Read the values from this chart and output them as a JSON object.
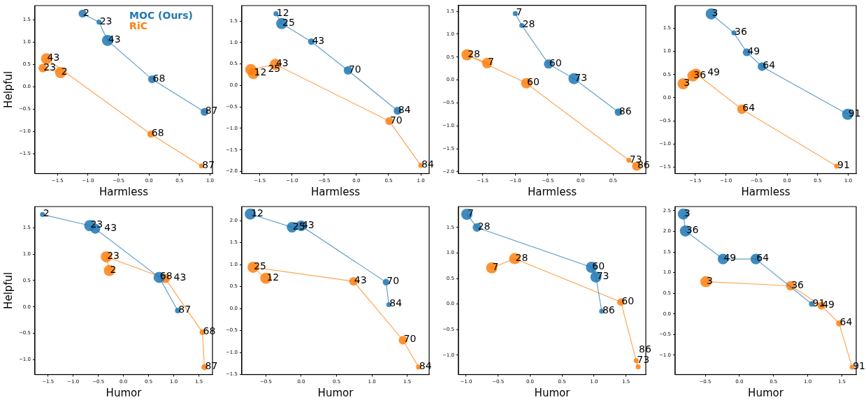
{
  "chart_data": [
    {
      "type": "bubble",
      "xlabel": "Harmless",
      "ylabel": "Helpful",
      "legend": "top right",
      "line_style": "solid",
      "grid": false,
      "xlim": [
        -1.87,
        1.04
      ],
      "ylim": [
        -1.94,
        1.82
      ],
      "xticks": [
        {
          "value": -1.5,
          "label": "−1.5"
        },
        {
          "value": -1,
          "label": "−1.0"
        },
        {
          "value": -0.5,
          "label": "−0.5"
        },
        {
          "value": 0,
          "label": "0.0"
        },
        {
          "value": 0.5,
          "label": "0.5"
        },
        {
          "value": 1,
          "label": "1.0"
        }
      ],
      "yticks": [
        {
          "value": -1.5,
          "label": "−1.5"
        },
        {
          "value": -1,
          "label": "−1.0"
        },
        {
          "value": -0.5,
          "label": "−0.5"
        },
        {
          "value": 0,
          "label": "0.0"
        },
        {
          "value": 0.5,
          "label": "0.5"
        },
        {
          "value": 1,
          "label": "1.0"
        },
        {
          "value": 1.5,
          "label": "1.5"
        }
      ],
      "series": [
        {
          "name": "MOC (Ours)",
          "color": "#1f77b4",
          "x": [
            -1.09,
            -0.82,
            -0.68,
            0.05,
            0.91
          ],
          "values": [
            1.64,
            1.45,
            1.04,
            0.17,
            -0.56
          ],
          "sizes": [
            0.5,
            0.2,
            1,
            0.5,
            0.5
          ]
        },
        {
          "name": "RiC",
          "color": "#ff7f0e",
          "x": [
            -1.45,
            -1.74,
            -1.68,
            0.03,
            0.86
          ],
          "values": [
            0.32,
            0.42,
            0.63,
            -1.06,
            -1.77
          ],
          "sizes": [
            1,
            0.6,
            1,
            0.4,
            0.2
          ]
        }
      ],
      "annotations": [
        {
          "text": "2",
          "x": -1.09,
          "y": 1.64
        },
        {
          "text": "23",
          "x": -0.82,
          "y": 1.45
        },
        {
          "text": "43",
          "x": -0.68,
          "y": 1.04
        },
        {
          "text": "68",
          "x": 0.05,
          "y": 0.17
        },
        {
          "text": "87",
          "x": 0.91,
          "y": -0.56
        },
        {
          "text": "2",
          "x": -1.45,
          "y": 0.32
        },
        {
          "text": "23",
          "x": -1.74,
          "y": 0.42
        },
        {
          "text": "43",
          "x": -1.68,
          "y": 0.63
        },
        {
          "text": "68",
          "x": 0.03,
          "y": -1.06
        },
        {
          "text": "87",
          "x": 0.86,
          "y": -1.77
        }
      ]
    },
    {
      "type": "bubble",
      "xlabel": "Harmless",
      "line_style": "solid",
      "grid": false,
      "xlim": [
        -1.78,
        1.13
      ],
      "ylim": [
        -2.05,
        1.86
      ],
      "xticks": [
        {
          "value": -1.5,
          "label": "−1.5"
        },
        {
          "value": -1,
          "label": "−1.0"
        },
        {
          "value": -0.5,
          "label": "−0.5"
        },
        {
          "value": 0,
          "label": "0.0"
        },
        {
          "value": 0.5,
          "label": "0.5"
        },
        {
          "value": 1,
          "label": "1.0"
        }
      ],
      "yticks": [
        {
          "value": -2,
          "label": "−2.0"
        },
        {
          "value": -1.5,
          "label": "−1.5"
        },
        {
          "value": -1,
          "label": "−1.0"
        },
        {
          "value": -0.5,
          "label": "−0.5"
        },
        {
          "value": 0,
          "label": "0.0"
        },
        {
          "value": 0.5,
          "label": "0.5"
        },
        {
          "value": 1,
          "label": "1.0"
        },
        {
          "value": 1.5,
          "label": "1.5"
        }
      ],
      "series": [
        {
          "color": "#1f77b4",
          "x": [
            -1.25,
            -1.16,
            -0.7,
            -0.13,
            0.64
          ],
          "values": [
            1.67,
            1.44,
            1.02,
            0.35,
            -0.59
          ],
          "sizes": [
            0.2,
            1,
            0.35,
            0.6,
            0.5
          ]
        },
        {
          "color": "#ff7f0e",
          "x": [
            -1.6,
            -1.64,
            -1.26,
            0.51,
            1.0
          ],
          "values": [
            0.28,
            0.37,
            0.49,
            -0.83,
            -1.86
          ],
          "sizes": [
            1,
            1,
            1,
            0.5,
            0.2
          ]
        }
      ],
      "annotations": [
        {
          "text": "12",
          "x": -1.25,
          "y": 1.67
        },
        {
          "text": "25",
          "x": -1.16,
          "y": 1.44
        },
        {
          "text": "43",
          "x": -0.7,
          "y": 1.02
        },
        {
          "text": "70",
          "x": -0.13,
          "y": 0.35
        },
        {
          "text": "84",
          "x": 0.64,
          "y": -0.59
        },
        {
          "text": "12",
          "x": -1.6,
          "y": 0.28
        },
        {
          "text": "25",
          "x": -1.64,
          "y": 0.37
        },
        {
          "text": "43",
          "x": -1.26,
          "y": 0.49
        },
        {
          "text": "70",
          "x": 0.51,
          "y": -0.83
        },
        {
          "text": "84",
          "x": 1.0,
          "y": -1.86
        }
      ]
    },
    {
      "type": "bubble",
      "xlabel": "Harmless",
      "line_style": "solid",
      "grid": false,
      "xlim": [
        -1.87,
        1.0
      ],
      "ylim": [
        -2.04,
        1.63
      ],
      "xticks": [
        {
          "value": -1.5,
          "label": "−1.5"
        },
        {
          "value": -1,
          "label": "−1.0"
        },
        {
          "value": -0.5,
          "label": "−0.5"
        },
        {
          "value": 0,
          "label": "0.0"
        },
        {
          "value": 0.5,
          "label": "0.5"
        }
      ],
      "yticks": [
        {
          "value": -2,
          "label": "−2.0"
        },
        {
          "value": -1.5,
          "label": "−1.5"
        },
        {
          "value": -1,
          "label": "−1.0"
        },
        {
          "value": -0.5,
          "label": "−0.5"
        },
        {
          "value": 0,
          "label": "0.0"
        },
        {
          "value": 0.5,
          "label": "0.5"
        },
        {
          "value": 1,
          "label": "1.0"
        },
        {
          "value": 1.5,
          "label": "1.5"
        }
      ],
      "series": [
        {
          "color": "#1f77b4",
          "x": [
            -1.0,
            -0.9,
            -0.49,
            -0.1,
            0.58
          ],
          "values": [
            1.45,
            1.19,
            0.35,
            0.03,
            -0.7
          ],
          "sizes": [
            0.2,
            0.2,
            0.7,
            1,
            0.45
          ]
        },
        {
          "color": "#ff7f0e",
          "x": [
            -1.43,
            -1.74,
            -0.83,
            0.74,
            0.86
          ],
          "values": [
            0.37,
            0.55,
            -0.07,
            -1.75,
            -1.88
          ],
          "sizes": [
            0.9,
            1,
            0.9,
            0.2,
            0.7
          ]
        }
      ],
      "annotations": [
        {
          "text": "7",
          "x": -1.0,
          "y": 1.45
        },
        {
          "text": "28",
          "x": -0.9,
          "y": 1.19
        },
        {
          "text": "60",
          "x": -0.49,
          "y": 0.35
        },
        {
          "text": "73",
          "x": -0.1,
          "y": 0.03
        },
        {
          "text": "86",
          "x": 0.58,
          "y": -0.7
        },
        {
          "text": "7",
          "x": -1.43,
          "y": 0.37
        },
        {
          "text": "28",
          "x": -1.74,
          "y": 0.55
        },
        {
          "text": "60",
          "x": -0.83,
          "y": -0.07
        },
        {
          "text": "73",
          "x": 0.74,
          "y": -1.75
        },
        {
          "text": "86",
          "x": 0.86,
          "y": -1.88
        }
      ]
    },
    {
      "type": "bubble",
      "xlabel": "Harmless",
      "line_style": "solid",
      "grid": false,
      "xlim": [
        -1.83,
        1.13
      ],
      "ylim": [
        -1.64,
        1.99
      ],
      "xticks": [
        {
          "value": -1.5,
          "label": "−1.5"
        },
        {
          "value": -1,
          "label": "−1.0"
        },
        {
          "value": -0.5,
          "label": "−0.5"
        },
        {
          "value": 0,
          "label": "0.0"
        },
        {
          "value": 0.5,
          "label": "0.5"
        },
        {
          "value": 1,
          "label": "1.0"
        }
      ],
      "yticks": [
        {
          "value": -1.5,
          "label": "−1.5"
        },
        {
          "value": -1,
          "label": "−1.0"
        },
        {
          "value": -0.5,
          "label": "−0.5"
        },
        {
          "value": 0,
          "label": "0.0"
        },
        {
          "value": 0.5,
          "label": "0.5"
        },
        {
          "value": 1,
          "label": "1.0"
        },
        {
          "value": 1.5,
          "label": "1.5"
        }
      ],
      "series": [
        {
          "color": "#1f77b4",
          "x": [
            -1.24,
            -0.87,
            -0.66,
            -0.41,
            0.99
          ],
          "values": [
            1.81,
            1.4,
            0.98,
            0.67,
            -0.36
          ],
          "sizes": [
            1,
            0.2,
            0.5,
            0.6,
            1
          ]
        },
        {
          "color": "#ff7f0e",
          "x": [
            -1.7,
            -1.54,
            -1.49,
            -0.74,
            0.81
          ],
          "values": [
            0.3,
            0.47,
            0.52,
            -0.25,
            -1.48
          ],
          "sizes": [
            1,
            1,
            0.8,
            0.7,
            0.2
          ]
        }
      ],
      "annotations": [
        {
          "text": "3",
          "x": -1.24,
          "y": 1.81
        },
        {
          "text": "36",
          "x": -0.87,
          "y": 1.4
        },
        {
          "text": "49",
          "x": -0.66,
          "y": 0.98
        },
        {
          "text": "64",
          "x": -0.41,
          "y": 0.67
        },
        {
          "text": "91",
          "x": 0.99,
          "y": -0.36
        },
        {
          "text": "3",
          "x": -1.7,
          "y": 0.3
        },
        {
          "text": "36",
          "x": -1.54,
          "y": 0.47
        },
        {
          "text": "49",
          "x": -1.49,
          "y": 0.52
        },
        {
          "text": "64",
          "x": -0.74,
          "y": -0.25
        },
        {
          "text": "91",
          "x": 0.81,
          "y": -1.48
        }
      ]
    },
    {
      "type": "bubble",
      "xlabel": "Humor",
      "ylabel": "Helpful",
      "line_style": "solid",
      "grid": false,
      "xlim": [
        -1.76,
        1.77
      ],
      "ylim": [
        -1.28,
        1.9
      ],
      "xticks": [
        {
          "value": -1.5,
          "label": "−1.5"
        },
        {
          "value": -1,
          "label": "−1.0"
        },
        {
          "value": -0.5,
          "label": "−0.5"
        },
        {
          "value": 0,
          "label": "0.0"
        },
        {
          "value": 0.5,
          "label": "0.5"
        },
        {
          "value": 1,
          "label": "1.0"
        },
        {
          "value": 1.5,
          "label": "1.5"
        }
      ],
      "yticks": [
        {
          "value": -1,
          "label": "−1.0"
        },
        {
          "value": -0.5,
          "label": "−0.5"
        },
        {
          "value": 0,
          "label": "0.0"
        },
        {
          "value": 0.5,
          "label": "0.5"
        },
        {
          "value": 1,
          "label": "1.0"
        },
        {
          "value": 1.5,
          "label": "1.5"
        }
      ],
      "series": [
        {
          "color": "#1f77b4",
          "x": [
            -1.61,
            -0.67,
            -0.56,
            0.71,
            1.08
          ],
          "values": [
            1.75,
            1.54,
            1.48,
            0.56,
            -0.07
          ],
          "sizes": [
            0.2,
            1,
            0.8,
            1,
            0.25
          ]
        },
        {
          "color": "#ff7f0e",
          "x": [
            -0.28,
            -0.34,
            0.83,
            1.57,
            1.61
          ],
          "values": [
            0.69,
            0.95,
            0.54,
            -0.48,
            -1.14
          ],
          "sizes": [
            1,
            1,
            0.7,
            0.25,
            0.3
          ]
        }
      ],
      "annotations": [
        {
          "text": "2",
          "x": -1.61,
          "y": 1.75
        },
        {
          "text": "23",
          "x": -0.67,
          "y": 1.54
        },
        {
          "text": "43",
          "x": -0.56,
          "y": 1.48
        },
        {
          "text": "68",
          "x": 0.71,
          "y": 0.56
        },
        {
          "text": "87",
          "x": 1.08,
          "y": -0.07
        },
        {
          "text": "2",
          "x": -0.28,
          "y": 0.69
        },
        {
          "text": "23",
          "x": -0.34,
          "y": 0.95
        },
        {
          "text": "43",
          "x": 0.83,
          "y": 0.54
        },
        {
          "text": "68",
          "x": 1.57,
          "y": -0.48
        },
        {
          "text": "87",
          "x": 1.61,
          "y": -1.14
        }
      ]
    },
    {
      "type": "bubble",
      "xlabel": "Humor",
      "line_style": "solid",
      "grid": false,
      "xlim": [
        -0.84,
        1.81
      ],
      "ylim": [
        -1.5,
        2.32
      ],
      "xticks": [
        {
          "value": -0.5,
          "label": "−0.5"
        },
        {
          "value": 0,
          "label": "0.0"
        },
        {
          "value": 0.5,
          "label": "0.5"
        },
        {
          "value": 1,
          "label": "1.0"
        },
        {
          "value": 1.5,
          "label": "1.5"
        }
      ],
      "yticks": [
        {
          "value": -1.5,
          "label": "−1.5"
        },
        {
          "value": -1,
          "label": "−1.0"
        },
        {
          "value": -0.5,
          "label": "−0.5"
        },
        {
          "value": 0,
          "label": "0.0"
        },
        {
          "value": 0.5,
          "label": "0.5"
        },
        {
          "value": 1,
          "label": "1.0"
        },
        {
          "value": 1.5,
          "label": "1.5"
        },
        {
          "value": 2,
          "label": "2.0"
        }
      ],
      "series": [
        {
          "color": "#1f77b4",
          "x": [
            -0.72,
            -0.13,
            0.0,
            1.2,
            1.24
          ],
          "values": [
            2.15,
            1.85,
            1.88,
            0.6,
            0.09
          ],
          "sizes": [
            1,
            0.9,
            0.9,
            0.35,
            0.2
          ]
        },
        {
          "color": "#ff7f0e",
          "x": [
            -0.5,
            -0.68,
            0.74,
            1.44,
            1.66
          ],
          "values": [
            0.69,
            0.94,
            0.62,
            -0.72,
            -1.33
          ],
          "sizes": [
            1,
            1,
            0.6,
            0.6,
            0.2
          ]
        }
      ],
      "annotations": [
        {
          "text": "12",
          "x": -0.72,
          "y": 2.15
        },
        {
          "text": "25",
          "x": -0.13,
          "y": 1.85
        },
        {
          "text": "43",
          "x": 0.0,
          "y": 1.88
        },
        {
          "text": "70",
          "x": 1.2,
          "y": 0.6
        },
        {
          "text": "84",
          "x": 1.24,
          "y": 0.09
        },
        {
          "text": "12",
          "x": -0.5,
          "y": 0.69
        },
        {
          "text": "25",
          "x": -0.68,
          "y": 0.94
        },
        {
          "text": "43",
          "x": 0.74,
          "y": 0.62
        },
        {
          "text": "70",
          "x": 1.44,
          "y": -0.72
        },
        {
          "text": "84",
          "x": 1.66,
          "y": -1.33
        }
      ]
    },
    {
      "type": "bubble",
      "xlabel": "Humor",
      "line_style": "solid",
      "grid": false,
      "xlim": [
        -1.12,
        1.81
      ],
      "ylim": [
        -1.38,
        1.91
      ],
      "xticks": [
        {
          "value": -1,
          "label": "−1.0"
        },
        {
          "value": -0.5,
          "label": "−0.5"
        },
        {
          "value": 0,
          "label": "0.0"
        },
        {
          "value": 0.5,
          "label": "0.5"
        },
        {
          "value": 1,
          "label": "1.0"
        },
        {
          "value": 1.5,
          "label": "1.5"
        }
      ],
      "yticks": [
        {
          "value": -1,
          "label": "−1.0"
        },
        {
          "value": -0.5,
          "label": "−0.5"
        },
        {
          "value": 0,
          "label": "0.0"
        },
        {
          "value": 0.5,
          "label": "0.5"
        },
        {
          "value": 1,
          "label": "1.0"
        },
        {
          "value": 1.5,
          "label": "1.5"
        }
      ],
      "series": [
        {
          "color": "#1f77b4",
          "x": [
            -0.99,
            -0.83,
            0.96,
            1.03,
            1.12
          ],
          "values": [
            1.76,
            1.5,
            0.72,
            0.53,
            -0.14
          ],
          "sizes": [
            1,
            0.6,
            1,
            1,
            0.2
          ]
        },
        {
          "color": "#ff7f0e",
          "x": [
            -0.6,
            -0.24,
            1.42,
            1.66,
            1.69
          ],
          "values": [
            0.71,
            0.89,
            0.04,
            -1.11,
            -1.23
          ],
          "sizes": [
            1,
            1,
            0.45,
            0.2,
            0.2
          ]
        }
      ],
      "annotations": [
        {
          "text": "7",
          "x": -0.99,
          "y": 1.76
        },
        {
          "text": "28",
          "x": -0.83,
          "y": 1.5
        },
        {
          "text": "60",
          "x": 0.96,
          "y": 0.72
        },
        {
          "text": "73",
          "x": 1.03,
          "y": 0.53
        },
        {
          "text": "86",
          "x": 1.12,
          "y": -0.14
        },
        {
          "text": "7",
          "x": -0.6,
          "y": 0.71
        },
        {
          "text": "28",
          "x": -0.24,
          "y": 0.89
        },
        {
          "text": "60",
          "x": 1.42,
          "y": 0.04
        },
        {
          "text": "73",
          "x": 1.66,
          "y": -1.11
        },
        {
          "text": "86",
          "x": 1.69,
          "y": -1.23
        }
      ]
    },
    {
      "type": "bubble",
      "xlabel": "Humor",
      "line_style": "solid",
      "grid": false,
      "xlim": [
        -0.94,
        1.71
      ],
      "ylim": [
        -1.47,
        2.6
      ],
      "xticks": [
        {
          "value": -0.5,
          "label": "−0.5"
        },
        {
          "value": 0,
          "label": "0.0"
        },
        {
          "value": 0.5,
          "label": "0.5"
        },
        {
          "value": 1,
          "label": "1.0"
        },
        {
          "value": 1.5,
          "label": "1.5"
        }
      ],
      "yticks": [
        {
          "value": -1,
          "label": "−1.0"
        },
        {
          "value": -0.5,
          "label": "−0.5"
        },
        {
          "value": 0,
          "label": "0.0"
        },
        {
          "value": 0.5,
          "label": "0.5"
        },
        {
          "value": 1,
          "label": "1.0"
        },
        {
          "value": 1.5,
          "label": "1.5"
        },
        {
          "value": 2,
          "label": "2.0"
        },
        {
          "value": 2.5,
          "label": "2.5"
        }
      ],
      "series": [
        {
          "color": "#1f77b4",
          "x": [
            -0.82,
            -0.79,
            -0.24,
            0.24,
            1.06
          ],
          "values": [
            2.42,
            2.01,
            1.33,
            1.33,
            0.24
          ],
          "sizes": [
            1,
            1,
            0.9,
            0.9,
            0.25
          ]
        },
        {
          "color": "#ff7f0e",
          "x": [
            -0.49,
            0.75,
            1.2,
            1.46,
            1.65
          ],
          "values": [
            0.78,
            0.68,
            0.2,
            -0.23,
            -1.29
          ],
          "sizes": [
            1,
            0.7,
            0.5,
            0.3,
            0.2
          ]
        }
      ],
      "annotations": [
        {
          "text": "3",
          "x": -0.82,
          "y": 2.42
        },
        {
          "text": "36",
          "x": -0.79,
          "y": 2.01
        },
        {
          "text": "49",
          "x": -0.24,
          "y": 1.33
        },
        {
          "text": "64",
          "x": 0.24,
          "y": 1.33
        },
        {
          "text": "91",
          "x": 1.06,
          "y": 0.24
        },
        {
          "text": "3",
          "x": -0.49,
          "y": 0.78
        },
        {
          "text": "36",
          "x": 0.75,
          "y": 0.68
        },
        {
          "text": "49",
          "x": 1.2,
          "y": 0.2
        },
        {
          "text": "64",
          "x": 1.46,
          "y": -0.23
        },
        {
          "text": "91",
          "x": 1.65,
          "y": -1.29
        }
      ]
    }
  ]
}
